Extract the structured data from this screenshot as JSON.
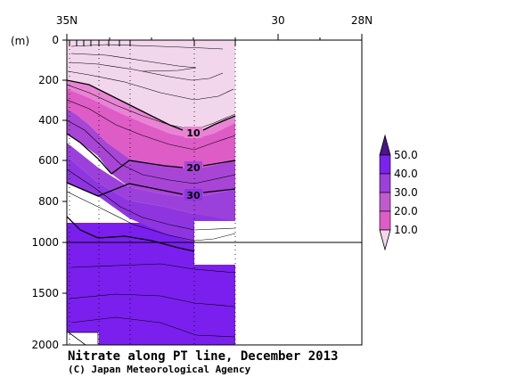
{
  "chart_data": {
    "type": "contour-section",
    "title": "Nitrate along PT line, December 2013",
    "credit": "(C) Japan Meteorological Agency",
    "xaxis": {
      "label_ticks": [
        "35N",
        "30",
        "28N"
      ],
      "range": [
        35,
        28
      ]
    },
    "yaxis": {
      "unit": "(m)",
      "ticks_upper": [
        "0",
        "200",
        "400",
        "600",
        "800",
        "1000"
      ],
      "ticks_lower": [
        "1500",
        "2000"
      ],
      "range": [
        0,
        2000
      ],
      "break_depth": 1000
    },
    "contour_labels": [
      "10",
      "20",
      "30"
    ],
    "colorbar": {
      "labels": [
        "50.0",
        "40.0",
        "30.0",
        "20.0",
        "10.0"
      ],
      "colors": [
        "#4a148c",
        "#7a22ee",
        "#a84ad8",
        "#dc55c6",
        "#eec6e6"
      ]
    },
    "colors": {
      "band_0_10": "#f2d6ec",
      "band_10_20": "#de5cc6",
      "band_20_30": "#a845d6",
      "band_30_40": "#8e35e0",
      "band_40_50": "#7a1fee"
    }
  }
}
